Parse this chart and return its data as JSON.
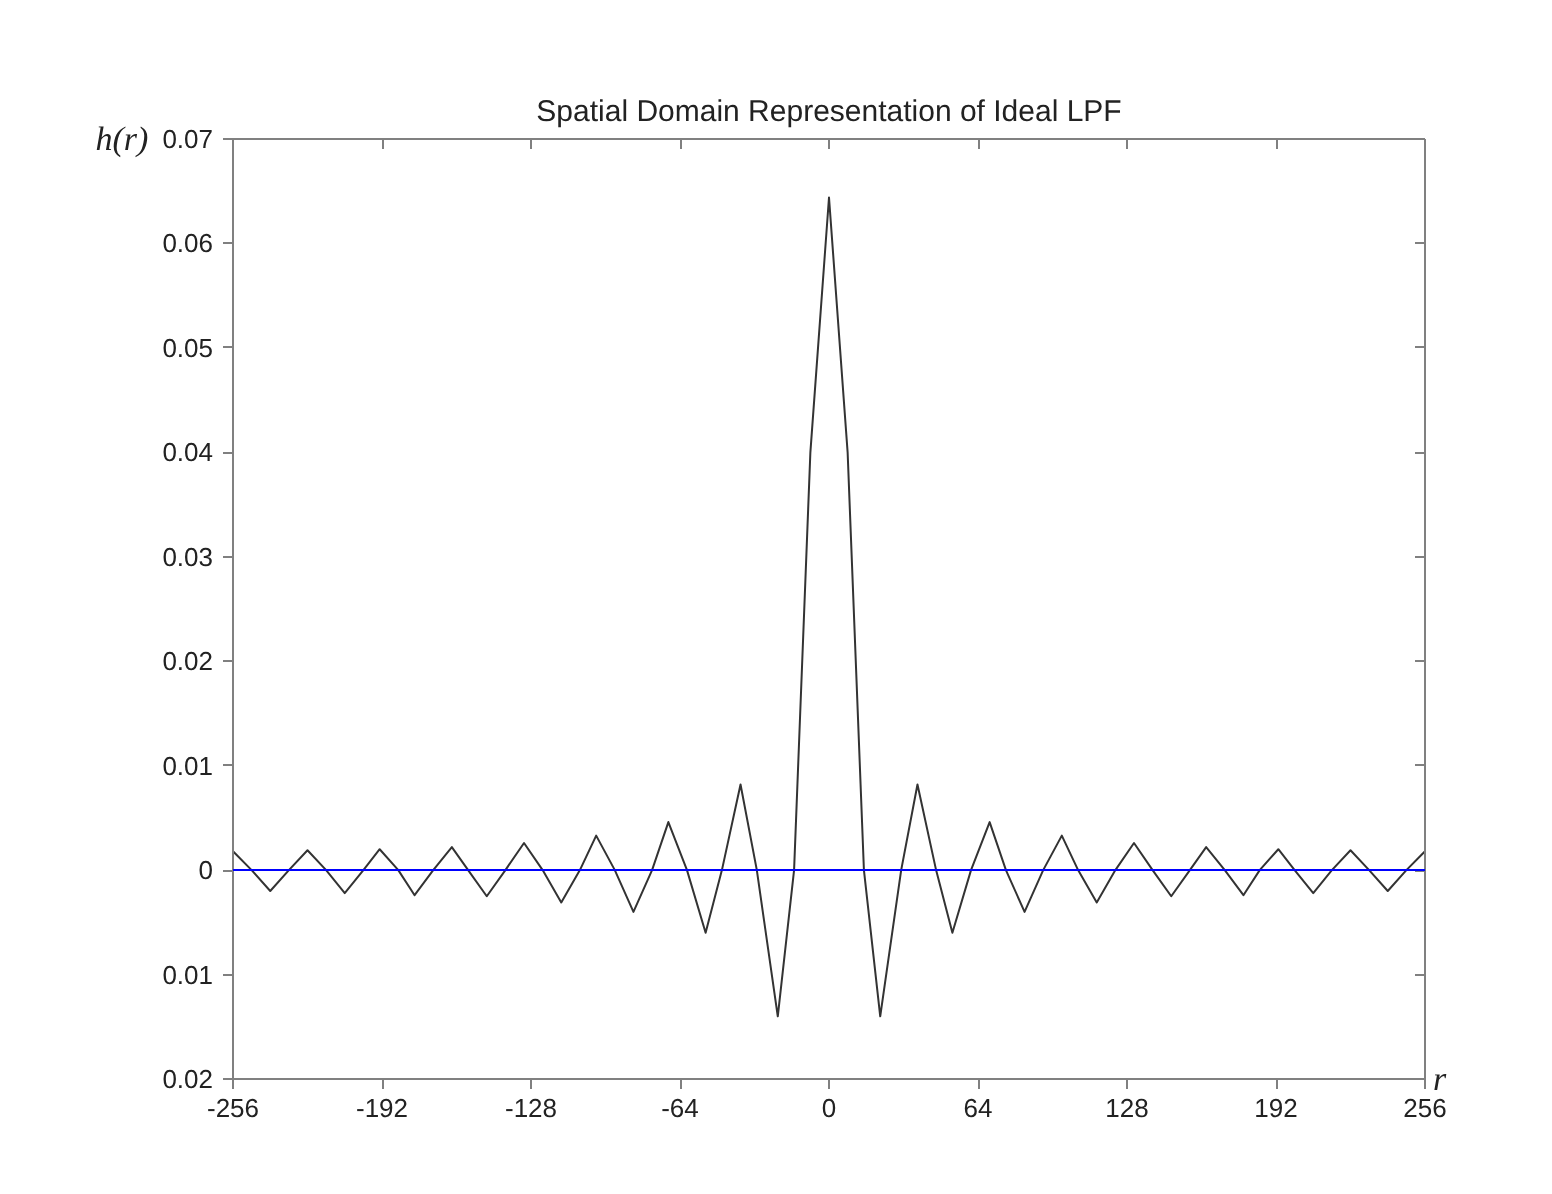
{
  "chart_data": {
    "type": "line",
    "title": "Spatial Domain Representation of Ideal LPF",
    "xlabel": "r",
    "ylabel": "h(r)",
    "x": [
      -256,
      -248,
      -240,
      -232,
      -224,
      -216,
      -208,
      -200,
      -193,
      -185,
      -178,
      -170,
      -162,
      -155,
      -147,
      -139,
      -131,
      -123,
      -115,
      -107,
      -100,
      -92,
      -84,
      -76,
      -69,
      -61,
      -53,
      -46,
      -38,
      -31,
      -22,
      -15,
      -8,
      0,
      8,
      15,
      22,
      31,
      38,
      46,
      53,
      61,
      69,
      76,
      84,
      92,
      100,
      107,
      115,
      123,
      131,
      139,
      147,
      155,
      162,
      170,
      178,
      185,
      193,
      200,
      208,
      216,
      224,
      232,
      240,
      248,
      256
    ],
    "series": [
      {
        "color": "#333333",
        "values": [
          0.0018,
          0,
          -0.002,
          0,
          0.0019,
          0,
          -0.0022,
          0,
          0.002,
          0,
          -0.0024,
          0,
          0.0022,
          0,
          -0.0025,
          0,
          0.0026,
          0,
          -0.0031,
          0,
          0.0033,
          0,
          -0.004,
          0,
          0.0046,
          0,
          -0.006,
          0,
          0.0082,
          0,
          -0.014,
          0,
          0.04,
          0.0644,
          0.04,
          0,
          -0.014,
          0,
          0.0082,
          0,
          -0.006,
          0,
          0.0046,
          0,
          -0.004,
          0,
          0.0033,
          0,
          -0.0031,
          0,
          0.0026,
          0,
          -0.0025,
          0,
          0.0022,
          0,
          -0.0024,
          0,
          0.002,
          0,
          -0.0022,
          0,
          0.0019,
          0,
          -0.002,
          0,
          0.0018
        ]
      }
    ],
    "xlim": [
      -256,
      256
    ],
    "ylim": [
      -0.02,
      0.07
    ],
    "xticks": [
      -256,
      -192,
      -128,
      -64,
      0,
      64,
      128,
      192,
      256
    ],
    "yticks": [
      {
        "value": -0.02,
        "label": "0.02"
      },
      {
        "value": -0.01,
        "label": "0.01"
      },
      0,
      0.01,
      0.02,
      0.03,
      0.04,
      0.05,
      0.06,
      0.07
    ],
    "ref_lines": [
      {
        "axis": "y",
        "value": 0,
        "color": "#0000ff"
      }
    ],
    "grid": false
  }
}
